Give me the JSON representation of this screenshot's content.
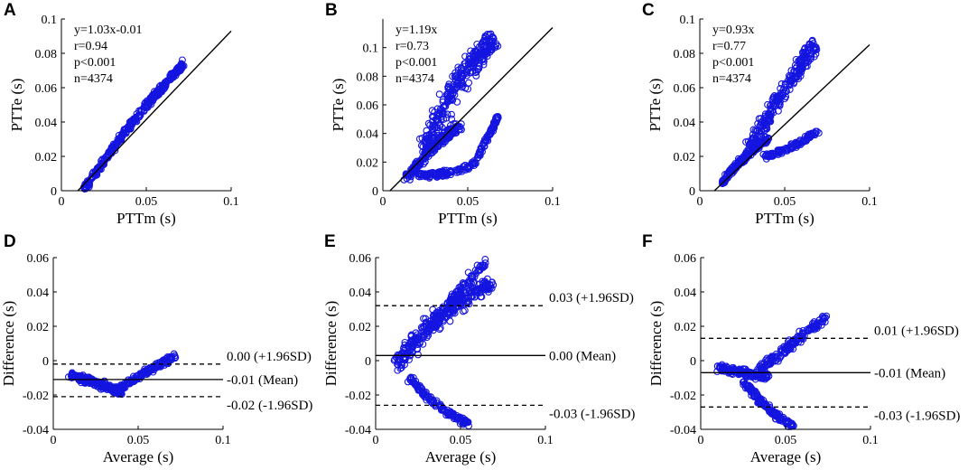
{
  "palette": {
    "marker": "#1515e0",
    "axis": "#000000"
  },
  "chart_data": [
    {
      "panel": "A",
      "type": "scatter",
      "xlabel": "PTTm (s)",
      "ylabel": "PTTe (s)",
      "xlim": [
        0,
        0.1
      ],
      "ylim": [
        0,
        0.1
      ],
      "xticks": [
        {
          "v": 0,
          "label": "0"
        },
        {
          "v": 0.05,
          "label": "0.05"
        },
        {
          "v": 0.1,
          "label": "0.1"
        }
      ],
      "yticks": [
        {
          "v": 0,
          "label": "0"
        },
        {
          "v": 0.02,
          "label": "0.02"
        },
        {
          "v": 0.04,
          "label": "0.04"
        },
        {
          "v": 0.06,
          "label": "0.06"
        },
        {
          "v": 0.08,
          "label": "0.08"
        },
        {
          "v": 0.1,
          "label": "0.1"
        }
      ],
      "stats": [
        "y=1.03x-0.01",
        "r=0.94",
        "p<0.001",
        "n=4374"
      ],
      "fit": {
        "slope": 1.03,
        "intercept": -0.01
      },
      "clusters": [
        {
          "x0": 0.014,
          "x1": 0.072,
          "y0": 0.002,
          "y1": 0.074,
          "bulge": 0.003,
          "w": 0.0025,
          "n": 380
        }
      ]
    },
    {
      "panel": "B",
      "type": "scatter",
      "xlabel": "PTTm (s)",
      "ylabel": "PTTe (s)",
      "xlim": [
        0,
        0.1
      ],
      "ylim": [
        0,
        0.12
      ],
      "xticks": [
        {
          "v": 0,
          "label": "0"
        },
        {
          "v": 0.05,
          "label": "0.05"
        },
        {
          "v": 0.1,
          "label": "0.1"
        }
      ],
      "yticks": [
        {
          "v": 0,
          "label": "0"
        },
        {
          "v": 0.02,
          "label": "0.02"
        },
        {
          "v": 0.04,
          "label": "0.04"
        },
        {
          "v": 0.06,
          "label": "0.06"
        },
        {
          "v": 0.08,
          "label": "0.08"
        },
        {
          "v": 0.1,
          "label": "0.1"
        }
      ],
      "stats": [
        "y=1.19x",
        "r=0.73",
        "p<0.001",
        "n=4374"
      ],
      "fit": {
        "slope": 1.19,
        "intercept": -0.005
      },
      "clusters": [
        {
          "x0": 0.013,
          "x1": 0.045,
          "y0": 0.008,
          "y1": 0.045,
          "bulge": 0.003,
          "w": 0.005,
          "n": 200
        },
        {
          "x0": 0.025,
          "x1": 0.065,
          "y0": 0.03,
          "y1": 0.105,
          "bulge": 0.01,
          "w": 0.011,
          "n": 300
        },
        {
          "x0": 0.02,
          "x1": 0.055,
          "y0": 0.012,
          "y1": 0.02,
          "bulge": -0.004,
          "w": 0.003,
          "n": 110
        },
        {
          "x0": 0.055,
          "x1": 0.068,
          "y0": 0.022,
          "y1": 0.052,
          "bulge": 0.0,
          "w": 0.0025,
          "n": 70
        }
      ]
    },
    {
      "panel": "C",
      "type": "scatter",
      "xlabel": "PTTm (s)",
      "ylabel": "PTTe (s)",
      "xlim": [
        0,
        0.1
      ],
      "ylim": [
        0,
        0.1
      ],
      "xticks": [
        {
          "v": 0,
          "label": "0"
        },
        {
          "v": 0.05,
          "label": "0.05"
        },
        {
          "v": 0.1,
          "label": "0.1"
        }
      ],
      "yticks": [
        {
          "v": 0,
          "label": "0"
        },
        {
          "v": 0.02,
          "label": "0.02"
        },
        {
          "v": 0.04,
          "label": "0.04"
        },
        {
          "v": 0.06,
          "label": "0.06"
        },
        {
          "v": 0.08,
          "label": "0.08"
        },
        {
          "v": 0.1,
          "label": "0.1"
        }
      ],
      "stats": [
        "y=0.93x",
        "r=0.77",
        "p<0.001",
        "n=4374"
      ],
      "fit": {
        "slope": 0.93,
        "intercept": -0.008
      },
      "clusters": [
        {
          "x0": 0.013,
          "x1": 0.04,
          "y0": 0.005,
          "y1": 0.03,
          "bulge": 0.002,
          "w": 0.003,
          "n": 160
        },
        {
          "x0": 0.03,
          "x1": 0.068,
          "y0": 0.025,
          "y1": 0.085,
          "bulge": 0.003,
          "w": 0.007,
          "n": 260
        },
        {
          "x0": 0.038,
          "x1": 0.07,
          "y0": 0.02,
          "y1": 0.035,
          "bulge": -0.002,
          "w": 0.0025,
          "n": 110
        }
      ]
    },
    {
      "panel": "D",
      "type": "scatter",
      "xlabel": "Average (s)",
      "ylabel": "Difference (s)",
      "xlim": [
        0,
        0.1
      ],
      "ylim": [
        -0.04,
        0.06
      ],
      "xticks": [
        {
          "v": 0,
          "label": "0"
        },
        {
          "v": 0.05,
          "label": "0.05"
        },
        {
          "v": 0.1,
          "label": "0.1"
        }
      ],
      "yticks": [
        {
          "v": -0.04,
          "label": "-0.04"
        },
        {
          "v": -0.02,
          "label": "-0.02"
        },
        {
          "v": 0,
          "label": "0"
        },
        {
          "v": 0.02,
          "label": "0.02"
        },
        {
          "v": 0.04,
          "label": "0.04"
        },
        {
          "v": 0.06,
          "label": "0.06"
        }
      ],
      "hlines": [
        {
          "y": -0.002,
          "dash": true,
          "label": "0.00 (+1.96SD)"
        },
        {
          "y": -0.011,
          "dash": false,
          "label": "-0.01 (Mean)"
        },
        {
          "y": -0.021,
          "dash": true,
          "label": "-0.02 (-1.96SD)"
        }
      ],
      "clusters": [
        {
          "x0": 0.01,
          "x1": 0.04,
          "y0": -0.008,
          "y1": -0.018,
          "bulge": 0.0,
          "w": 0.003,
          "n": 200
        },
        {
          "x0": 0.035,
          "x1": 0.072,
          "y0": -0.018,
          "y1": 0.003,
          "bulge": 0.0,
          "w": 0.0025,
          "n": 180
        }
      ]
    },
    {
      "panel": "E",
      "type": "scatter",
      "xlabel": "Average (s)",
      "ylabel": "Difference (s)",
      "xlim": [
        0,
        0.1
      ],
      "ylim": [
        -0.04,
        0.06
      ],
      "xticks": [
        {
          "v": 0,
          "label": "0"
        },
        {
          "v": 0.05,
          "label": "0.05"
        },
        {
          "v": 0.1,
          "label": "0.1"
        }
      ],
      "yticks": [
        {
          "v": -0.04,
          "label": "-0.04"
        },
        {
          "v": -0.02,
          "label": "-0.02"
        },
        {
          "v": 0,
          "label": "0"
        },
        {
          "v": 0.02,
          "label": "0.02"
        },
        {
          "v": 0.04,
          "label": "0.04"
        },
        {
          "v": 0.06,
          "label": "0.06"
        }
      ],
      "hlines": [
        {
          "y": 0.032,
          "dash": true,
          "label": "0.03 (+1.96SD)"
        },
        {
          "y": 0.003,
          "dash": false,
          "label": "0.00 (Mean)"
        },
        {
          "y": -0.026,
          "dash": true,
          "label": "-0.03 (-1.96SD)"
        }
      ],
      "clusters": [
        {
          "x0": 0.012,
          "x1": 0.068,
          "y0": -0.002,
          "y1": 0.045,
          "bulge": 0.006,
          "w": 0.008,
          "n": 330
        },
        {
          "x0": 0.02,
          "x1": 0.055,
          "y0": -0.01,
          "y1": -0.036,
          "bulge": -0.004,
          "w": 0.003,
          "n": 130
        },
        {
          "x0": 0.04,
          "x1": 0.065,
          "y0": 0.03,
          "y1": 0.058,
          "bulge": 0.0,
          "w": 0.004,
          "n": 70
        }
      ]
    },
    {
      "panel": "F",
      "type": "scatter",
      "xlabel": "Average (s)",
      "ylabel": "Difference (s)",
      "xlim": [
        0,
        0.1
      ],
      "ylim": [
        -0.04,
        0.06
      ],
      "xticks": [
        {
          "v": 0,
          "label": "0"
        },
        {
          "v": 0.05,
          "label": "0.05"
        },
        {
          "v": 0.1,
          "label": "0.1"
        }
      ],
      "yticks": [
        {
          "v": -0.04,
          "label": "-0.04"
        },
        {
          "v": -0.02,
          "label": "-0.02"
        },
        {
          "v": 0,
          "label": "0"
        },
        {
          "v": 0.02,
          "label": "0.02"
        },
        {
          "v": 0.04,
          "label": "0.04"
        },
        {
          "v": 0.06,
          "label": "0.06"
        }
      ],
      "hlines": [
        {
          "y": 0.013,
          "dash": true,
          "label": "0.01 (+1.96SD)"
        },
        {
          "y": -0.007,
          "dash": false,
          "label": "-0.01 (Mean)"
        },
        {
          "y": -0.027,
          "dash": true,
          "label": "-0.03 (-1.96SD)"
        }
      ],
      "clusters": [
        {
          "x0": 0.01,
          "x1": 0.04,
          "y0": -0.004,
          "y1": -0.01,
          "bulge": 0.0,
          "w": 0.003,
          "n": 150
        },
        {
          "x0": 0.035,
          "x1": 0.073,
          "y0": -0.005,
          "y1": 0.025,
          "bulge": 0.0,
          "w": 0.004,
          "n": 170
        },
        {
          "x0": 0.025,
          "x1": 0.055,
          "y0": -0.012,
          "y1": -0.038,
          "bulge": -0.003,
          "w": 0.003,
          "n": 140
        }
      ]
    }
  ]
}
